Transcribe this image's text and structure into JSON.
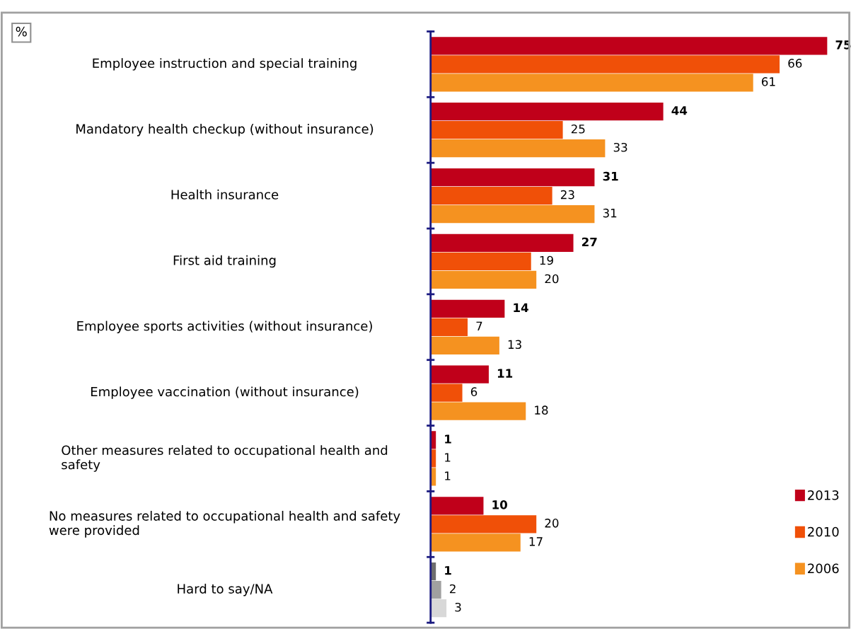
{
  "chart_data": {
    "type": "bar",
    "orientation": "horizontal",
    "categories": [
      "Employee instruction and special training",
      "Mandatory health checkup (without insurance)",
      "Health insurance",
      "First aid training",
      "Employee sports activities (without insurance)",
      "Employee vaccination (without insurance)",
      "Other measures related to occupational health and\nsafety",
      "No measures related to occupational health and safety\nwere provided",
      "Hard to say/NA"
    ],
    "series": [
      {
        "name": "2013",
        "color": "#c0001a",
        "colors": [
          "#c0001a",
          "#c0001a",
          "#c0001a",
          "#c0001a",
          "#c0001a",
          "#c0001a",
          "#c0001a",
          "#c0001a",
          "#6e6e6e"
        ],
        "values": [
          75,
          44,
          31,
          27,
          14,
          11,
          1,
          10,
          1
        ]
      },
      {
        "name": "2010",
        "color": "#f05008",
        "colors": [
          "#f05008",
          "#f05008",
          "#f05008",
          "#f05008",
          "#f05008",
          "#f05008",
          "#f05008",
          "#f05008",
          "#a0a0a0"
        ],
        "values": [
          66,
          25,
          23,
          19,
          7,
          6,
          1,
          20,
          2
        ]
      },
      {
        "name": "2006",
        "color": "#f59220",
        "colors": [
          "#f59220",
          "#f59220",
          "#f59220",
          "#f59220",
          "#f59220",
          "#f59220",
          "#f59220",
          "#f59220",
          "#d8d8d8"
        ],
        "values": [
          61,
          33,
          31,
          20,
          13,
          18,
          1,
          17,
          3
        ]
      }
    ],
    "data_labels": true,
    "legend": "bottom right",
    "grid": false,
    "annotations": [
      "%"
    ]
  }
}
